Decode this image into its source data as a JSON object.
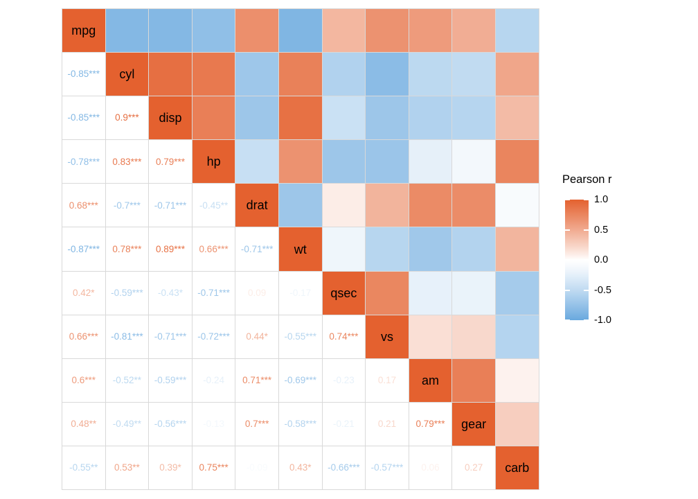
{
  "chart_data": {
    "type": "heatmap",
    "subtype": "correlation-matrix",
    "title": "",
    "legend": {
      "title": "Pearson r",
      "position": "right",
      "ticks": [
        "1.0",
        "0.5",
        "0.0",
        "-0.5",
        "-1.0"
      ],
      "range": [
        -1,
        1
      ]
    },
    "variables": [
      "mpg",
      "cyl",
      "disp",
      "hp",
      "drat",
      "wt",
      "qsec",
      "vs",
      "am",
      "gear",
      "carb"
    ],
    "lower_triangle_labels": [
      [],
      [
        "-0.85***"
      ],
      [
        "-0.85***",
        "0.9***"
      ],
      [
        "-0.78***",
        "0.83***",
        "0.79***"
      ],
      [
        "0.68***",
        "-0.7***",
        "-0.71***",
        "-0.45**"
      ],
      [
        "-0.87***",
        "0.78***",
        "0.89***",
        "0.66***",
        "-0.71***"
      ],
      [
        "0.42*",
        "-0.59***",
        "-0.43*",
        "-0.71***",
        "0.09",
        "-0.17"
      ],
      [
        "0.66***",
        "-0.81***",
        "-0.71***",
        "-0.72***",
        "0.44*",
        "-0.55***",
        "0.74***"
      ],
      [
        "0.6***",
        "-0.52**",
        "-0.59***",
        "-0.24",
        "0.71***",
        "-0.69***",
        "-0.23",
        "0.17"
      ],
      [
        "0.48**",
        "-0.49**",
        "-0.56***",
        "-0.13",
        "0.7***",
        "-0.58***",
        "-0.21",
        "0.21",
        "0.79***"
      ],
      [
        "-0.55**",
        "0.53**",
        "0.39*",
        "0.75***",
        "-0.09",
        "0.43*",
        "-0.66***",
        "-0.57***",
        "0.06",
        "0.27"
      ]
    ],
    "layout": {
      "upper_triangle": "colored tiles mirroring lower-triangle values",
      "diagonal": "variable names on full-strength positive color",
      "grid": "on"
    },
    "colors": {
      "high": "#E4612F",
      "mid": "#FFFFFF",
      "low": "#68A8DE",
      "grid_line": "#D9D9D9",
      "diag_label": "#000000"
    }
  }
}
